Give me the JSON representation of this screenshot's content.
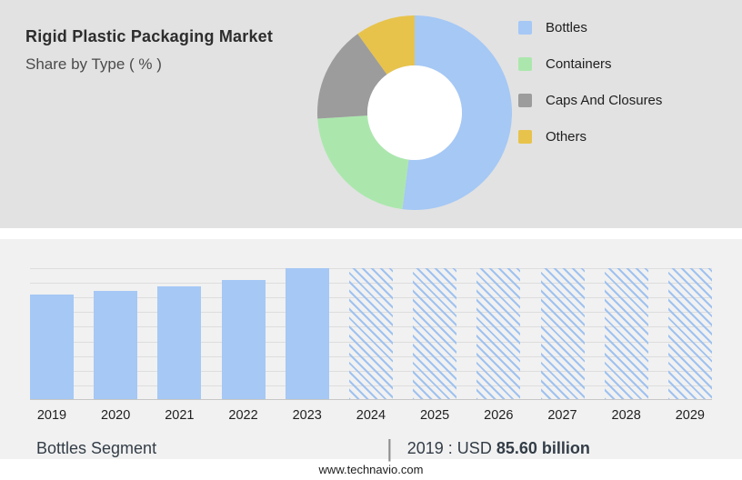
{
  "header": {
    "title": "Rigid Plastic Packaging Market",
    "subtitle": "Share by Type ( % )"
  },
  "chart_data": [
    {
      "type": "pie",
      "donut": true,
      "legend_position": "right",
      "title": "Rigid Plastic Packaging Market — Share by Type ( % )",
      "slices": [
        {
          "label": "Bottles",
          "value": 52,
          "color": "#a5c8f5"
        },
        {
          "label": "Containers",
          "value": 22,
          "color": "#abe7ad"
        },
        {
          "label": "Caps And Closures",
          "value": 16,
          "color": "#9c9c9c"
        },
        {
          "label": "Others",
          "value": 10,
          "color": "#e7c34c"
        }
      ],
      "hole_color": "#ffffff"
    },
    {
      "type": "bar",
      "categories": [
        "2019",
        "2020",
        "2021",
        "2022",
        "2023",
        "2024",
        "2025",
        "2026",
        "2027",
        "2028",
        "2029"
      ],
      "values": [
        80,
        83,
        86,
        91,
        100,
        100,
        100,
        100,
        100,
        100,
        100
      ],
      "units": "relative bar height (no y-axis labels shown)",
      "forecast_start_index": 5,
      "bar_color": "#a5c8f5",
      "ylim": [
        0,
        100
      ],
      "grid": true,
      "xlabel": "",
      "ylabel": "",
      "known_point_label": "2019 : USD 85.60 billion"
    }
  ],
  "footer": {
    "segment_label": "Bottles Segment",
    "separator": "|",
    "value_prefix": "2019 : USD",
    "value_bold": "85.60 billion",
    "website": "www.technavio.com"
  }
}
